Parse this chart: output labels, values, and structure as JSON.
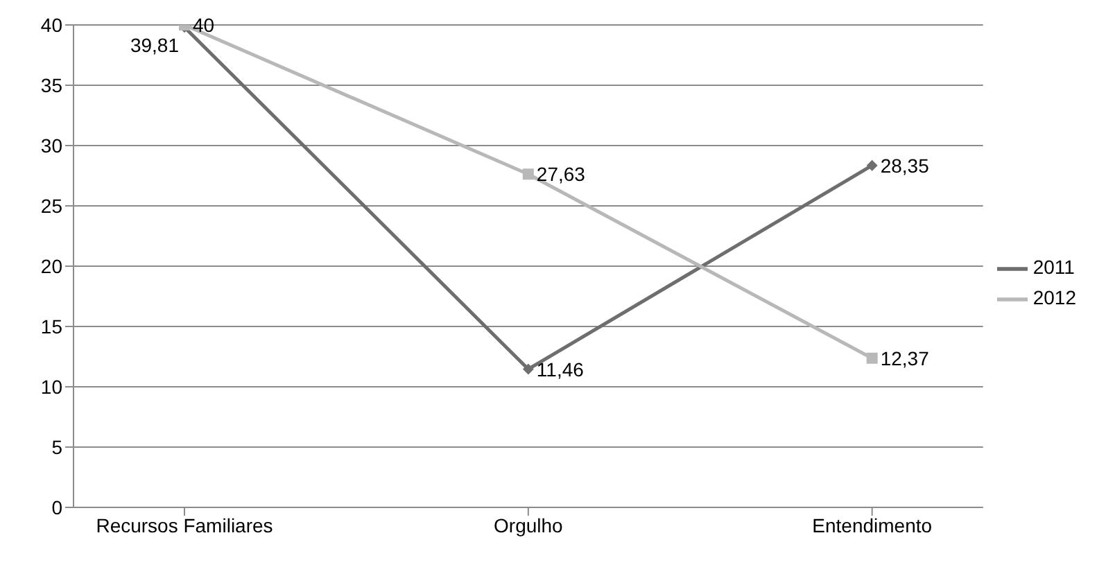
{
  "chart_data": {
    "type": "line",
    "categories": [
      "Recursos Familiares",
      "Orgulho",
      "Entendimento"
    ],
    "series": [
      {
        "name": "2011",
        "color": "#6e6e6e",
        "marker": "diamond",
        "values": [
          39.81,
          11.46,
          28.35
        ],
        "value_labels": [
          "39,81",
          "11,46",
          "28,35"
        ]
      },
      {
        "name": "2012",
        "color": "#b8b8b8",
        "marker": "square",
        "values": [
          40,
          27.63,
          12.37
        ],
        "value_labels": [
          "40",
          "27,63",
          "12,37"
        ]
      }
    ],
    "ylim": [
      0,
      40
    ],
    "yticks": [
      0,
      5,
      10,
      15,
      20,
      25,
      30,
      35,
      40
    ],
    "grid": "y",
    "legend": "right",
    "line_style": "solid"
  }
}
